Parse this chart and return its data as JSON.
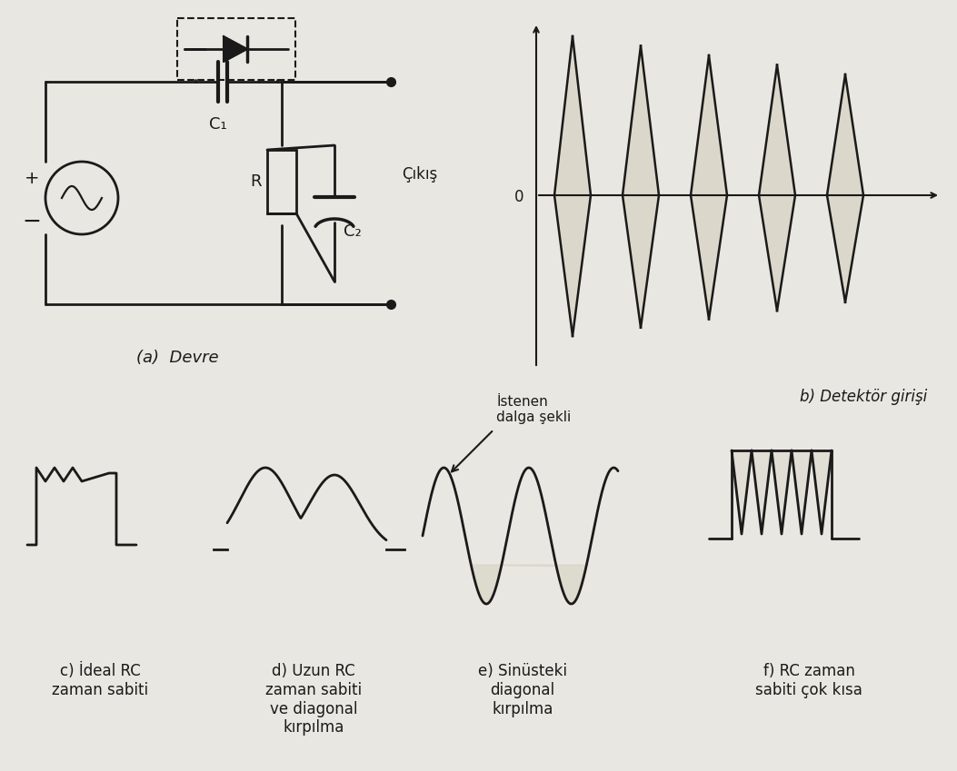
{
  "bg_color": "#e9e7e1",
  "line_color": "#1a1a1a",
  "fill_color": "#dbd8cb",
  "title_a": "(a)  Devre",
  "label_b": "b) Detektör girişi",
  "label_c": "c) İdeal RC\nzaman sabiti",
  "label_d": "d) Uzun RC\nzaman sabiti\nve diagonal\nkırpılma",
  "label_e": "e) Sinüsteki\ndiagonal\nkırpılma",
  "label_f": "f) RC zaman\nsabiti çok kısa",
  "annotation_e": "İstenen\ndalga şekli"
}
